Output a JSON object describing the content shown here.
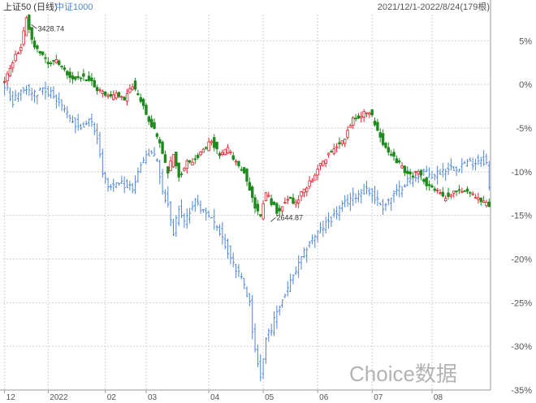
{
  "legend": {
    "series_a": "上证50 (日线)",
    "series_b": "中证1000",
    "range": "2021/12/1-2022/8/24(179根)"
  },
  "watermark": "Choice数据",
  "colors": {
    "up": "#e0242f",
    "down": "#1f8a1f",
    "line_b": "#4f86d6",
    "grid": "#d0d0d0",
    "axis": "#9a9a9a",
    "range_text": "#555555"
  },
  "chart_data": {
    "type": "candlestick",
    "title": "",
    "xlabel": "",
    "ylabel": "",
    "yaxis": {
      "unit": "%",
      "ylim": [
        -35,
        8
      ],
      "ticks": [
        5,
        0,
        -5,
        -10,
        -15,
        -20,
        -25,
        -30,
        -35
      ],
      "tick_labels": [
        "5%",
        "0%",
        "-5%",
        "-10%",
        "-15%",
        "-20%",
        "-25%",
        "-30%",
        "-35%"
      ],
      "grid": true,
      "position": "right"
    },
    "xaxis": {
      "tick_labels": [
        "12",
        "2022",
        "02",
        "03",
        "04",
        "05",
        "06",
        "07",
        "08"
      ],
      "tick_index": [
        0,
        16,
        37,
        52,
        75,
        95,
        115,
        135,
        157
      ],
      "n_bars": 179
    },
    "series": [
      {
        "name": "上证50 (日线)",
        "style": "candles",
        "anchors": [
          [
            0,
            0.5
          ],
          [
            3,
            2.5
          ],
          [
            6,
            4.5
          ],
          [
            8,
            7.5
          ],
          [
            10,
            5.0
          ],
          [
            13,
            3.5
          ],
          [
            16,
            2.5
          ],
          [
            19,
            3.0
          ],
          [
            22,
            1.5
          ],
          [
            25,
            0.5
          ],
          [
            28,
            0.8
          ],
          [
            31,
            0.5
          ],
          [
            34,
            -0.5
          ],
          [
            38,
            -1.5
          ],
          [
            41,
            -1.0
          ],
          [
            44,
            -2.0
          ],
          [
            47,
            0.0
          ],
          [
            50,
            -2.0
          ],
          [
            53,
            -4.0
          ],
          [
            56,
            -6.0
          ],
          [
            58,
            -8.0
          ],
          [
            60,
            -10.0
          ],
          [
            62,
            -8.0
          ],
          [
            64,
            -10.5
          ],
          [
            67,
            -9.0
          ],
          [
            70,
            -8.5
          ],
          [
            73,
            -7.5
          ],
          [
            76,
            -6.5
          ],
          [
            79,
            -8.0
          ],
          [
            82,
            -7.5
          ],
          [
            85,
            -9.0
          ],
          [
            88,
            -10.0
          ],
          [
            90,
            -12.0
          ],
          [
            92,
            -14.0
          ],
          [
            94,
            -15.0
          ],
          [
            96,
            -12.5
          ],
          [
            98,
            -13.5
          ],
          [
            100,
            -14.5
          ],
          [
            102,
            -14.0
          ],
          [
            104,
            -13.0
          ],
          [
            107,
            -13.5
          ],
          [
            110,
            -12.0
          ],
          [
            113,
            -11.0
          ],
          [
            116,
            -9.0
          ],
          [
            119,
            -8.0
          ],
          [
            122,
            -7.0
          ],
          [
            125,
            -6.0
          ],
          [
            128,
            -4.0
          ],
          [
            131,
            -3.5
          ],
          [
            134,
            -3.0
          ],
          [
            136,
            -4.5
          ],
          [
            138,
            -6.0
          ],
          [
            140,
            -7.5
          ],
          [
            143,
            -8.5
          ],
          [
            146,
            -9.5
          ],
          [
            149,
            -10.5
          ],
          [
            152,
            -10.0
          ],
          [
            155,
            -11.5
          ],
          [
            158,
            -12.0
          ],
          [
            161,
            -13.0
          ],
          [
            164,
            -12.5
          ],
          [
            167,
            -12.0
          ],
          [
            170,
            -12.5
          ],
          [
            173,
            -13.0
          ],
          [
            176,
            -13.5
          ],
          [
            178,
            -14.0
          ]
        ],
        "annotations": [
          {
            "label": "3428.74",
            "index": 8,
            "value": 7.5,
            "type": "high"
          },
          {
            "label": "2644.87",
            "index": 96,
            "value": -15.8,
            "type": "low"
          }
        ]
      },
      {
        "name": "中证1000",
        "style": "ohlc",
        "anchors": [
          [
            0,
            0.0
          ],
          [
            3,
            -2.0
          ],
          [
            5,
            -1.0
          ],
          [
            8,
            -0.5
          ],
          [
            11,
            -1.0
          ],
          [
            14,
            -0.5
          ],
          [
            17,
            -1.0
          ],
          [
            20,
            -2.0
          ],
          [
            24,
            -4.0
          ],
          [
            28,
            -5.0
          ],
          [
            31,
            -4.0
          ],
          [
            34,
            -6.0
          ],
          [
            36,
            -10.0
          ],
          [
            38,
            -12.0
          ],
          [
            41,
            -11.0
          ],
          [
            44,
            -11.5
          ],
          [
            47,
            -12.0
          ],
          [
            50,
            -9.0
          ],
          [
            53,
            -8.0
          ],
          [
            56,
            -8.5
          ],
          [
            58,
            -12.0
          ],
          [
            60,
            -14.0
          ],
          [
            62,
            -17.0
          ],
          [
            64,
            -14.0
          ],
          [
            66,
            -16.0
          ],
          [
            68,
            -14.5
          ],
          [
            70,
            -13.5
          ],
          [
            73,
            -14.5
          ],
          [
            76,
            -15.5
          ],
          [
            79,
            -17.0
          ],
          [
            82,
            -19.0
          ],
          [
            85,
            -21.0
          ],
          [
            88,
            -23.0
          ],
          [
            90,
            -25.0
          ],
          [
            91,
            -28.0
          ],
          [
            92,
            -30.0
          ],
          [
            93,
            -32.0
          ],
          [
            94,
            -33.5
          ],
          [
            96,
            -29.0
          ],
          [
            98,
            -28.0
          ],
          [
            100,
            -26.0
          ],
          [
            103,
            -24.0
          ],
          [
            106,
            -22.0
          ],
          [
            109,
            -20.0
          ],
          [
            112,
            -18.0
          ],
          [
            115,
            -17.0
          ],
          [
            118,
            -16.0
          ],
          [
            121,
            -15.0
          ],
          [
            124,
            -14.0
          ],
          [
            127,
            -13.0
          ],
          [
            130,
            -12.5
          ],
          [
            133,
            -12.0
          ],
          [
            136,
            -13.0
          ],
          [
            139,
            -14.0
          ],
          [
            142,
            -13.0
          ],
          [
            145,
            -12.0
          ],
          [
            148,
            -11.0
          ],
          [
            151,
            -10.5
          ],
          [
            154,
            -10.0
          ],
          [
            157,
            -10.5
          ],
          [
            160,
            -10.0
          ],
          [
            163,
            -9.5
          ],
          [
            166,
            -9.5
          ],
          [
            169,
            -9.0
          ],
          [
            172,
            -9.0
          ],
          [
            175,
            -8.5
          ],
          [
            177,
            -9.0
          ],
          [
            178,
            -12.0
          ]
        ]
      }
    ]
  }
}
